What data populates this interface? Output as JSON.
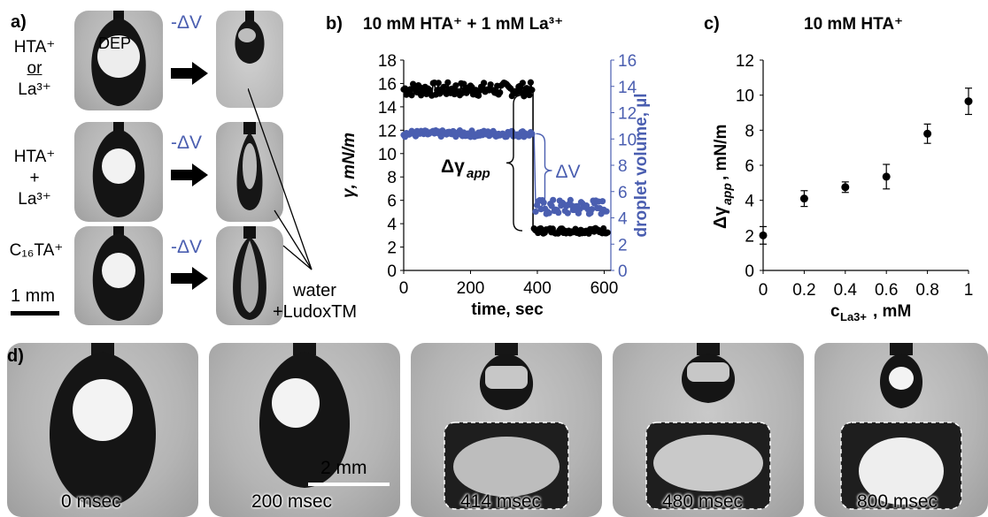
{
  "panel_a": {
    "label": "a)",
    "rows": [
      {
        "lines": [
          "HTA⁺",
          "or",
          "La³⁺"
        ]
      },
      {
        "lines": [
          "HTA⁺",
          "+",
          "La³⁺"
        ]
      },
      {
        "lines": [
          "C₁₆TA⁺"
        ]
      }
    ],
    "dep_label": "DEP",
    "delta_v": "-ΔV",
    "scale_bar": "1 mm",
    "water_label_1": "water",
    "water_label_2": "+LudoxTM"
  },
  "panel_b": {
    "label": "b)",
    "title": "10 mM HTA⁺ + 1 mM La³⁺",
    "delta_gamma_label": "Δγ",
    "delta_gamma_sub": "app",
    "delta_v_label": "ΔV"
  },
  "panel_c": {
    "label": "c)",
    "title": "10 mM HTA⁺"
  },
  "panel_d": {
    "label": "d)",
    "scale_bar": "2 mm",
    "frames": [
      "0 msec",
      "200 msec",
      "414 msec",
      "480 msec",
      "800 msec"
    ]
  },
  "chart_data": [
    {
      "type": "scatter",
      "title": "10 mM HTA⁺ + 1 mM La³⁺",
      "xlabel": "time, sec",
      "ylabel": "γ,  mN/m",
      "y2label": "droplet volume, µl",
      "xlim": [
        0,
        620
      ],
      "ylim": [
        0,
        18
      ],
      "y2lim": [
        0,
        16
      ],
      "xticks": [
        0,
        200,
        400,
        600
      ],
      "yticks": [
        0,
        2,
        4,
        6,
        8,
        10,
        12,
        14,
        16,
        18
      ],
      "y2ticks": [
        0,
        2,
        4,
        6,
        8,
        10,
        12,
        14,
        16
      ],
      "series": [
        {
          "axis": "left",
          "color": "#000000",
          "segments": [
            {
              "x0": 0,
              "x1": 385,
              "mean": 15.5,
              "spread": 0.6
            },
            {
              "x0": 390,
              "x1": 610,
              "mean": 3.4,
              "spread": 0.25
            }
          ]
        },
        {
          "axis": "right",
          "color": "#4a5eb0",
          "segments": [
            {
              "x0": 0,
              "x1": 385,
              "mean": 10.4,
              "spread": 0.25
            },
            {
              "x0": 395,
              "x1": 610,
              "mean": 4.8,
              "spread": 0.6
            }
          ]
        }
      ]
    },
    {
      "type": "scatter",
      "title": "10 mM HTA⁺",
      "xlabel": "c",
      "xlabel_sub": "La3+",
      "xlabel_tail": ", mM",
      "ylabel": "Δγ",
      "ylabel_sub": "app",
      "ylabel_tail": ", mN/m",
      "xlim": [
        0,
        1
      ],
      "ylim": [
        0,
        12
      ],
      "xticks": [
        "0",
        "0.2",
        "0.4",
        "0.6",
        "0.8",
        "1"
      ],
      "yticks": [
        0,
        2,
        4,
        6,
        8,
        10,
        12
      ],
      "x": [
        0,
        0.2,
        0.4,
        0.6,
        0.8,
        1.0
      ],
      "y": [
        2.0,
        4.1,
        4.75,
        5.35,
        7.8,
        9.65
      ],
      "err": [
        0.5,
        0.45,
        0.3,
        0.7,
        0.55,
        0.75
      ]
    }
  ]
}
